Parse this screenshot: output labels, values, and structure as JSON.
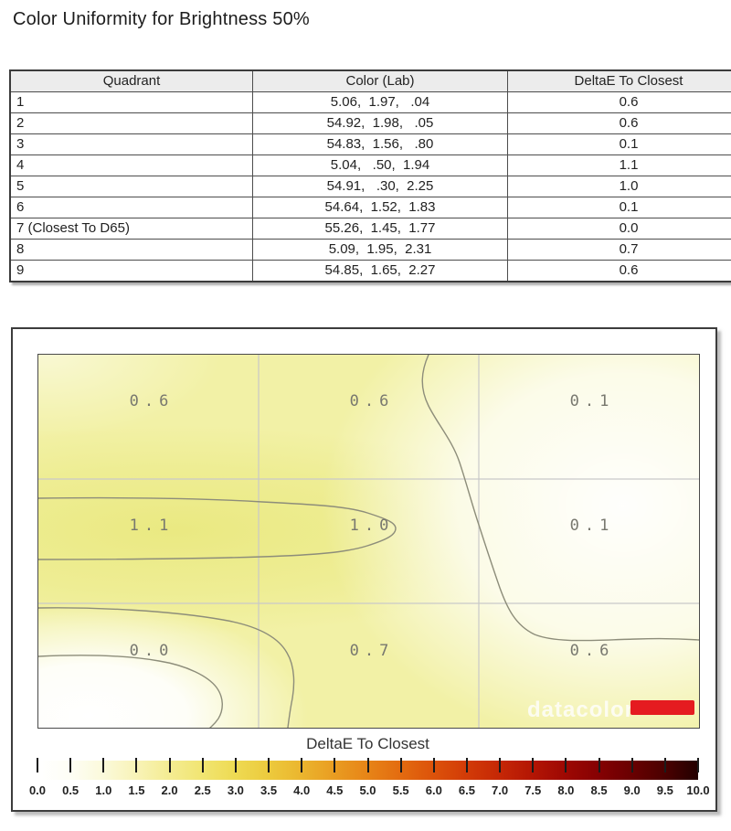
{
  "page": {
    "title": "Color Uniformity for Brightness 50%"
  },
  "table": {
    "columns": [
      "Quadrant",
      "Color (Lab)",
      "DeltaE To Closest"
    ],
    "rows": [
      {
        "quadrant": "1",
        "color_lab": "5.06,  1.97,   .04",
        "delta_e": "0.6"
      },
      {
        "quadrant": "2",
        "color_lab": "54.92,  1.98,   .05",
        "delta_e": "0.6"
      },
      {
        "quadrant": "3",
        "color_lab": "54.83,  1.56,   .80",
        "delta_e": "0.1"
      },
      {
        "quadrant": "4",
        "color_lab": "5.04,   .50,  1.94",
        "delta_e": "1.1"
      },
      {
        "quadrant": "5",
        "color_lab": "54.91,   .30,  2.25",
        "delta_e": "1.0"
      },
      {
        "quadrant": "6",
        "color_lab": "54.64,  1.52,  1.83",
        "delta_e": "0.1"
      },
      {
        "quadrant": "7 (Closest To D65)",
        "color_lab": "55.26,  1.45,  1.77",
        "delta_e": "0.0"
      },
      {
        "quadrant": "8",
        "color_lab": "5.09,  1.95,  2.31",
        "delta_e": "0.7"
      },
      {
        "quadrant": "9",
        "color_lab": "54.85,  1.65,  2.27",
        "delta_e": "0.6"
      }
    ]
  },
  "heatmap": {
    "values": [
      "0.6",
      "0.6",
      "0.1",
      "1.1",
      "1.0",
      "0.1",
      "0.0",
      "0.7",
      "0.6"
    ],
    "watermark": {
      "text": "datacolor",
      "accent_color": "#e51b20"
    }
  },
  "colorbar": {
    "title": "DeltaE To Closest",
    "tick_labels": [
      "0.0",
      "0.5",
      "1.0",
      "1.5",
      "2.0",
      "2.5",
      "3.0",
      "3.5",
      "4.0",
      "4.5",
      "5.0",
      "5.5",
      "6.0",
      "6.5",
      "7.0",
      "7.5",
      "8.0",
      "8.5",
      "9.0",
      "9.5",
      "10.0"
    ],
    "gradient": [
      "#ffffff",
      "#fefef5",
      "#fbf9da",
      "#f8f3b7",
      "#f4ec92",
      "#f1e571",
      "#eeda52",
      "#ecca3d",
      "#ebb52e",
      "#e99c21",
      "#e78417",
      "#e36b10",
      "#dc520a",
      "#d23b07",
      "#c52706",
      "#b31504",
      "#9d0803",
      "#850103",
      "#690001",
      "#4a0000",
      "#230000"
    ]
  },
  "chart_data": {
    "type": "heatmap",
    "title": "Color Uniformity for Brightness 50%",
    "rows": 3,
    "cols": 3,
    "values": [
      [
        0.6,
        0.6,
        0.1
      ],
      [
        1.1,
        1.0,
        0.1
      ],
      [
        0.0,
        0.7,
        0.6
      ]
    ],
    "cell_labels": [
      [
        "0.6",
        "0.6",
        "0.1"
      ],
      [
        "1.1",
        "1.0",
        "0.1"
      ],
      [
        "0.0",
        "0.7",
        "0.6"
      ]
    ],
    "colorbar": {
      "label": "DeltaE To Closest",
      "min": 0.0,
      "max": 10.0,
      "tick_step": 0.5,
      "position": "bottom",
      "colors_low_to_high": [
        "white",
        "yellow",
        "orange",
        "red",
        "dark-red",
        "black"
      ]
    },
    "grid": true,
    "quadrant_table": {
      "columns": [
        "Quadrant",
        "Color (Lab)",
        "DeltaE To Closest"
      ],
      "rows": [
        [
          "1",
          "5.06, 1.97, .04",
          0.6
        ],
        [
          "2",
          "54.92, 1.98, .05",
          0.6
        ],
        [
          "3",
          "54.83, 1.56, .80",
          0.1
        ],
        [
          "4",
          "5.04, .50, 1.94",
          1.1
        ],
        [
          "5",
          "54.91, .30, 2.25",
          1.0
        ],
        [
          "6",
          "54.64, 1.52, 1.83",
          0.1
        ],
        [
          "7 (Closest To D65)",
          "55.26, 1.45, 1.77",
          0.0
        ],
        [
          "8",
          "5.09, 1.95, 2.31",
          0.7
        ],
        [
          "9",
          "54.85, 1.65, 2.27",
          0.6
        ]
      ]
    }
  }
}
